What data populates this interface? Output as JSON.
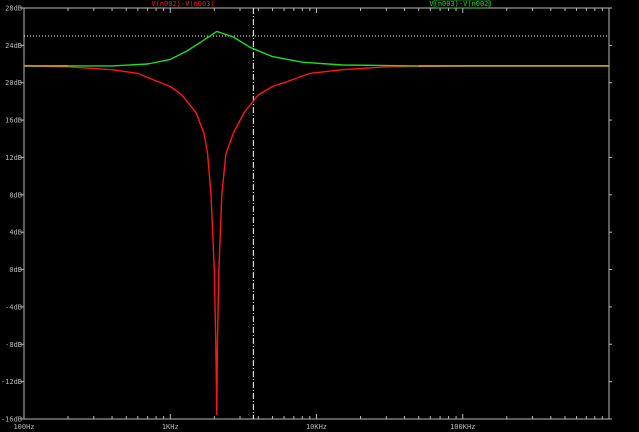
{
  "colors": {
    "background": "#000000",
    "frame": "#b8b8b8",
    "grid": "#9a9a9a",
    "cursor": "#ffffff",
    "series_a": "#ff1414",
    "series_b": "#1edc1e",
    "overlap": "#c8b400"
  },
  "chart_data": {
    "type": "line",
    "x_scale": "log",
    "xlim": [
      100,
      1000000
    ],
    "ylim": [
      -16,
      28
    ],
    "grid": false,
    "xticks": [
      {
        "value": 100,
        "label": "100Hz"
      },
      {
        "value": 1000,
        "label": "1KHz"
      },
      {
        "value": 10000,
        "label": "10KHz"
      },
      {
        "value": 100000,
        "label": "100KHz"
      }
    ],
    "yticks": [
      {
        "value": 28,
        "label": "28dB"
      },
      {
        "value": 24,
        "label": "24dB"
      },
      {
        "value": 20,
        "label": "20dB"
      },
      {
        "value": 16,
        "label": "16dB"
      },
      {
        "value": 12,
        "label": "12dB"
      },
      {
        "value": 8,
        "label": "8dB"
      },
      {
        "value": 4,
        "label": "4dB"
      },
      {
        "value": 0,
        "label": "0dB"
      },
      {
        "value": -4,
        "label": "-4dB"
      },
      {
        "value": -8,
        "label": "-8dB"
      },
      {
        "value": -12,
        "label": "-12dB"
      },
      {
        "value": -16,
        "label": "-16dB"
      }
    ],
    "cursor": {
      "x": 3700,
      "y": 25
    },
    "series": [
      {
        "name": "V(n002)-V(n003)",
        "color": "#ff1414",
        "legend_position": "top-center",
        "points": [
          [
            100,
            21.8
          ],
          [
            200,
            21.7
          ],
          [
            400,
            21.4
          ],
          [
            600,
            21.0
          ],
          [
            800,
            20.2
          ],
          [
            1000,
            19.6
          ],
          [
            1200,
            18.7
          ],
          [
            1500,
            16.8
          ],
          [
            1700,
            14.6
          ],
          [
            1800,
            12.4
          ],
          [
            1900,
            8.0
          ],
          [
            2000,
            0.0
          ],
          [
            2050,
            -8.0
          ],
          [
            2080,
            -15.5
          ],
          [
            2100,
            -8.0
          ],
          [
            2150,
            0.0
          ],
          [
            2250,
            8.0
          ],
          [
            2400,
            12.4
          ],
          [
            2700,
            14.6
          ],
          [
            3200,
            16.8
          ],
          [
            4000,
            18.7
          ],
          [
            5000,
            19.6
          ],
          [
            6500,
            20.2
          ],
          [
            9000,
            21.0
          ],
          [
            15000,
            21.4
          ],
          [
            30000,
            21.7
          ],
          [
            100000,
            21.8
          ],
          [
            1000000,
            21.8
          ]
        ]
      },
      {
        "name": "V(n003)-V(n002)",
        "color": "#1edc1e",
        "legend_position": "top-right",
        "points": [
          [
            100,
            21.8
          ],
          [
            400,
            21.8
          ],
          [
            700,
            22.0
          ],
          [
            1000,
            22.5
          ],
          [
            1300,
            23.4
          ],
          [
            1600,
            24.3
          ],
          [
            2080,
            25.5
          ],
          [
            2700,
            24.9
          ],
          [
            3500,
            23.8
          ],
          [
            5000,
            22.8
          ],
          [
            8000,
            22.2
          ],
          [
            15000,
            21.9
          ],
          [
            50000,
            21.8
          ],
          [
            1000000,
            21.8
          ]
        ]
      }
    ]
  }
}
